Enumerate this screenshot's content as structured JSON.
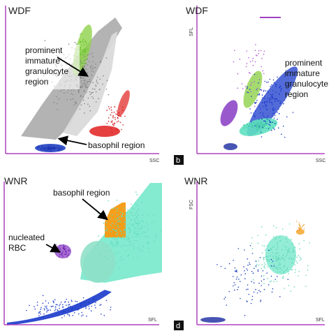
{
  "panels": [
    {
      "title": "WDF",
      "x_axis": "SSC",
      "annotations": [
        {
          "lines": [
            "prominent",
            "immature",
            "granulocyte",
            "region"
          ]
        },
        {
          "lines": [
            "basophil region"
          ]
        }
      ]
    },
    {
      "title": "WDF",
      "y_axis": "SFL",
      "x_axis": "SSC",
      "label": "b",
      "annotations": [
        {
          "lines": [
            "prominent",
            "immature",
            "granulocyte",
            "region"
          ]
        }
      ]
    },
    {
      "title": "WNR",
      "x_axis": "SFL",
      "annotations": [
        {
          "lines": [
            "basophil region"
          ]
        },
        {
          "lines": [
            "nucleated",
            "RBC"
          ]
        }
      ]
    },
    {
      "title": "WNR",
      "y_axis": "FSC",
      "x_axis": "SFL",
      "label": "d"
    }
  ]
}
